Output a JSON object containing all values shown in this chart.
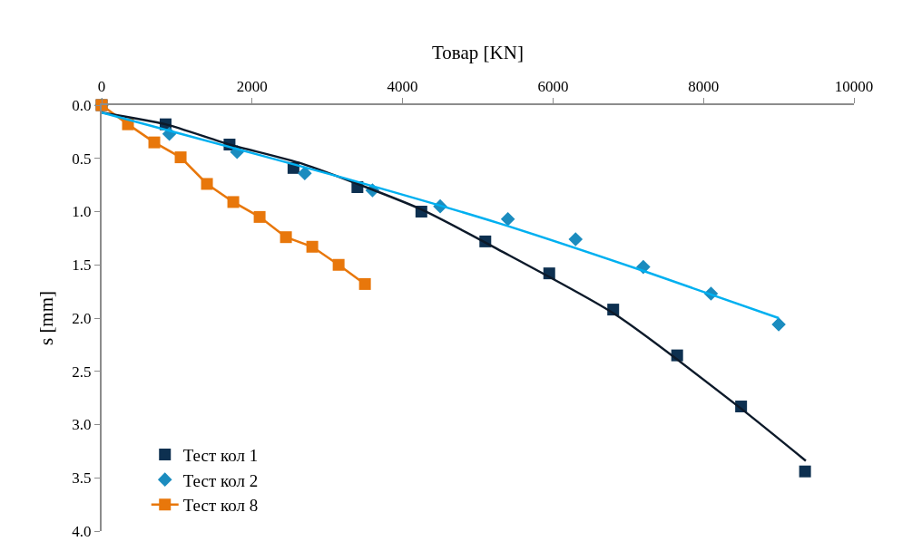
{
  "chart_data": {
    "type": "scatter",
    "xlabel": "Товар [KN]",
    "ylabel": "s [mm]",
    "xlim": [
      0,
      10000
    ],
    "xticks": [
      0,
      2000,
      4000,
      6000,
      8000,
      10000
    ],
    "ylim": [
      4.0,
      0.0
    ],
    "yticks": [
      {
        "value": 0,
        "label": "0.0"
      },
      {
        "value": 0.5,
        "label": "0.5"
      },
      {
        "value": 1,
        "label": "1.0"
      },
      {
        "value": 1.5,
        "label": "1.5"
      },
      {
        "value": 2,
        "label": "2.0"
      },
      {
        "value": 2.5,
        "label": "2.5"
      },
      {
        "value": 3,
        "label": "3.0"
      },
      {
        "value": 3.5,
        "label": "3.5"
      },
      {
        "value": 4,
        "label": "4.0"
      }
    ],
    "legend": "bottom left",
    "series": [
      {
        "name": "Тест кол 1",
        "marker": "square",
        "color": "#0d3050",
        "x": [
          0,
          850,
          1700,
          2550,
          3400,
          4250,
          5100,
          5950,
          6800,
          7650,
          8500,
          9350
        ],
        "values": [
          0,
          0.18,
          0.37,
          0.59,
          0.77,
          1.0,
          1.28,
          1.58,
          1.92,
          2.35,
          2.83,
          3.44
        ]
      },
      {
        "name": "Тест кол 2",
        "marker": "diamond",
        "color": "#1b8cbf",
        "x": [
          0,
          900,
          1800,
          2700,
          3600,
          4500,
          5400,
          6300,
          7200,
          8100,
          9000
        ],
        "values": [
          0,
          0.27,
          0.44,
          0.64,
          0.8,
          0.95,
          1.07,
          1.26,
          1.52,
          1.77,
          2.06
        ]
      },
      {
        "name": "Тест кол 8",
        "type": "line",
        "marker": "square",
        "line_style": "solid",
        "color": "#e8770b",
        "x": [
          0,
          350,
          700,
          1050,
          1400,
          1750,
          2100,
          2450,
          2800,
          3150,
          3500
        ],
        "values": [
          0,
          0.18,
          0.35,
          0.49,
          0.74,
          0.91,
          1.05,
          1.24,
          1.33,
          1.5,
          1.68
        ]
      },
      {
        "type": "line",
        "marker": "none",
        "line_style": "solid",
        "color": "#0d1a2a",
        "x": [
          0,
          850,
          1700,
          2666,
          4250,
          5283,
          6815,
          8500,
          9360
        ],
        "values": [
          0.07,
          0.18,
          0.37,
          0.55,
          0.98,
          1.36,
          1.96,
          2.85,
          3.34
        ]
      },
      {
        "type": "line",
        "marker": "none",
        "line_style": "solid",
        "color": "#00b0f0",
        "x": [
          0,
          1000,
          3197,
          5283,
          7213,
          9000
        ],
        "values": [
          0.07,
          0.26,
          0.68,
          1.11,
          1.56,
          2.0
        ]
      }
    ]
  }
}
